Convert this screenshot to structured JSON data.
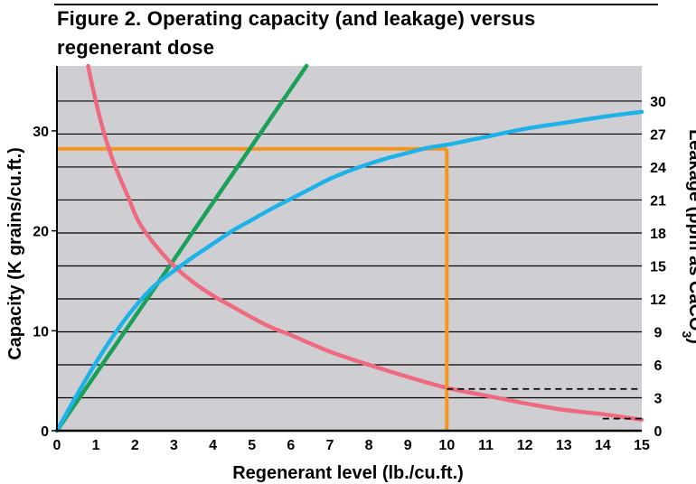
{
  "title": {
    "line1": "Figure 2. Operating capacity (and leakage) versus",
    "line2": "regenerant dose"
  },
  "chart_data": {
    "type": "line",
    "xlabel": "Regenerant level (lb./cu.ft.)",
    "ylabel_left": "Capacity (K grains/cu.ft.)",
    "ylabel_right_main": "Leakage (ppm as CaCO",
    "ylabel_right_sub": "3",
    "ylabel_right_close": ")",
    "xlim": [
      0,
      15
    ],
    "ylim_left": [
      0,
      36.5
    ],
    "ylim_right": [
      0,
      33.2
    ],
    "x_ticks": [
      "0",
      "1",
      "2",
      "3",
      "4",
      "5",
      "6",
      "7",
      "8",
      "9",
      "10",
      "11",
      "12",
      "13",
      "14",
      "15"
    ],
    "y_left_ticks": [
      "0",
      "10",
      "20",
      "30"
    ],
    "y_right_ticks": [
      "0",
      "3",
      "6",
      "9",
      "12",
      "15",
      "18",
      "21",
      "24",
      "27",
      "30"
    ],
    "grid": true,
    "colors": {
      "plot_background": "#cfcfd3",
      "grid": "#000000",
      "capacity": "#1fb2e8",
      "leakage": "#ee6a7f",
      "diagonal": "#1aa05a",
      "guide": "#f7941d"
    },
    "series": [
      {
        "axis": "left",
        "x": [
          0,
          0.5,
          1,
          1.5,
          2,
          2.5,
          3,
          3.5,
          4,
          4.5,
          5,
          5.5,
          6,
          6.5,
          7,
          7.5,
          8,
          8.5,
          9,
          9.5,
          10,
          10.5,
          11,
          12,
          13,
          14,
          15
        ],
        "values": [
          0,
          3.5,
          6.8,
          9.8,
          12.4,
          14.5,
          16.0,
          17.4,
          18.7,
          20.0,
          21.1,
          22.2,
          23.2,
          24.2,
          25.2,
          26.0,
          26.7,
          27.3,
          27.8,
          28.3,
          28.6,
          29.0,
          29.4,
          30.2,
          30.8,
          31.4,
          31.9
        ]
      },
      {
        "axis": "right",
        "x": [
          0.8,
          0.9,
          1.1,
          1.3,
          1.5,
          1.8,
          2.1,
          2.5,
          3,
          3.5,
          4,
          4.5,
          5,
          5.5,
          6,
          7,
          8,
          9,
          10,
          11,
          12,
          13,
          14,
          15
        ],
        "values": [
          33.2,
          31.5,
          28.5,
          26.0,
          24.0,
          21.5,
          19.0,
          17.0,
          15.0,
          13.5,
          12.3,
          11.3,
          10.3,
          9.4,
          8.7,
          7.2,
          6.0,
          4.9,
          3.9,
          3.2,
          2.5,
          1.9,
          1.5,
          1.0
        ]
      },
      {
        "axis": "left",
        "x": [
          0,
          6.4
        ],
        "values": [
          0,
          36.5
        ]
      }
    ],
    "guides": {
      "capacity_at_10": {
        "x": 10,
        "y": 28.2
      },
      "leakage_dashed": [
        {
          "x_from": 10,
          "x_to": 15,
          "y": 3.8
        },
        {
          "x_from": 14,
          "x_to": 15,
          "y": 1.1
        }
      ]
    }
  }
}
